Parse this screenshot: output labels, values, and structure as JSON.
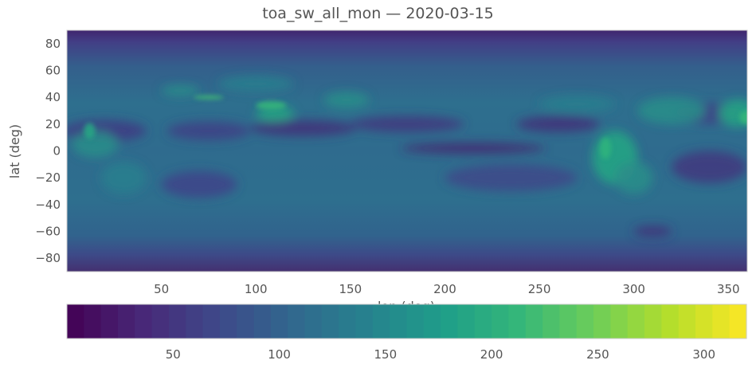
{
  "title": "toa_sw_all_mon — 2020-03-15",
  "chart_data": {
    "type": "heatmap",
    "title": "toa_sw_all_mon — 2020-03-15",
    "xlabel": "lon (deg)",
    "ylabel": "lat (deg)",
    "xlim": [
      0,
      360
    ],
    "ylim": [
      -90,
      90
    ],
    "xticks": [
      50,
      100,
      150,
      200,
      250,
      300,
      350
    ],
    "yticks": [
      80,
      60,
      40,
      20,
      0,
      -20,
      -40,
      -60,
      -80
    ],
    "colormap": "viridis",
    "colorbar": {
      "range": [
        0,
        320
      ],
      "ticks": [
        50,
        100,
        150,
        200,
        250,
        300
      ],
      "orientation": "horizontal",
      "placement": "bottom"
    },
    "grid": false,
    "features": [
      {
        "lat_range": [
          80,
          90
        ],
        "value": 20
      },
      {
        "lat_range": [
          70,
          80
        ],
        "value": 60
      },
      {
        "lat_range": [
          -80,
          -70
        ],
        "value": 60
      },
      {
        "lat_range": [
          -90,
          -80
        ],
        "value": 35
      }
    ],
    "colors": {
      "low": "#440154",
      "mid": "#21918c",
      "high": "#fde725"
    }
  }
}
